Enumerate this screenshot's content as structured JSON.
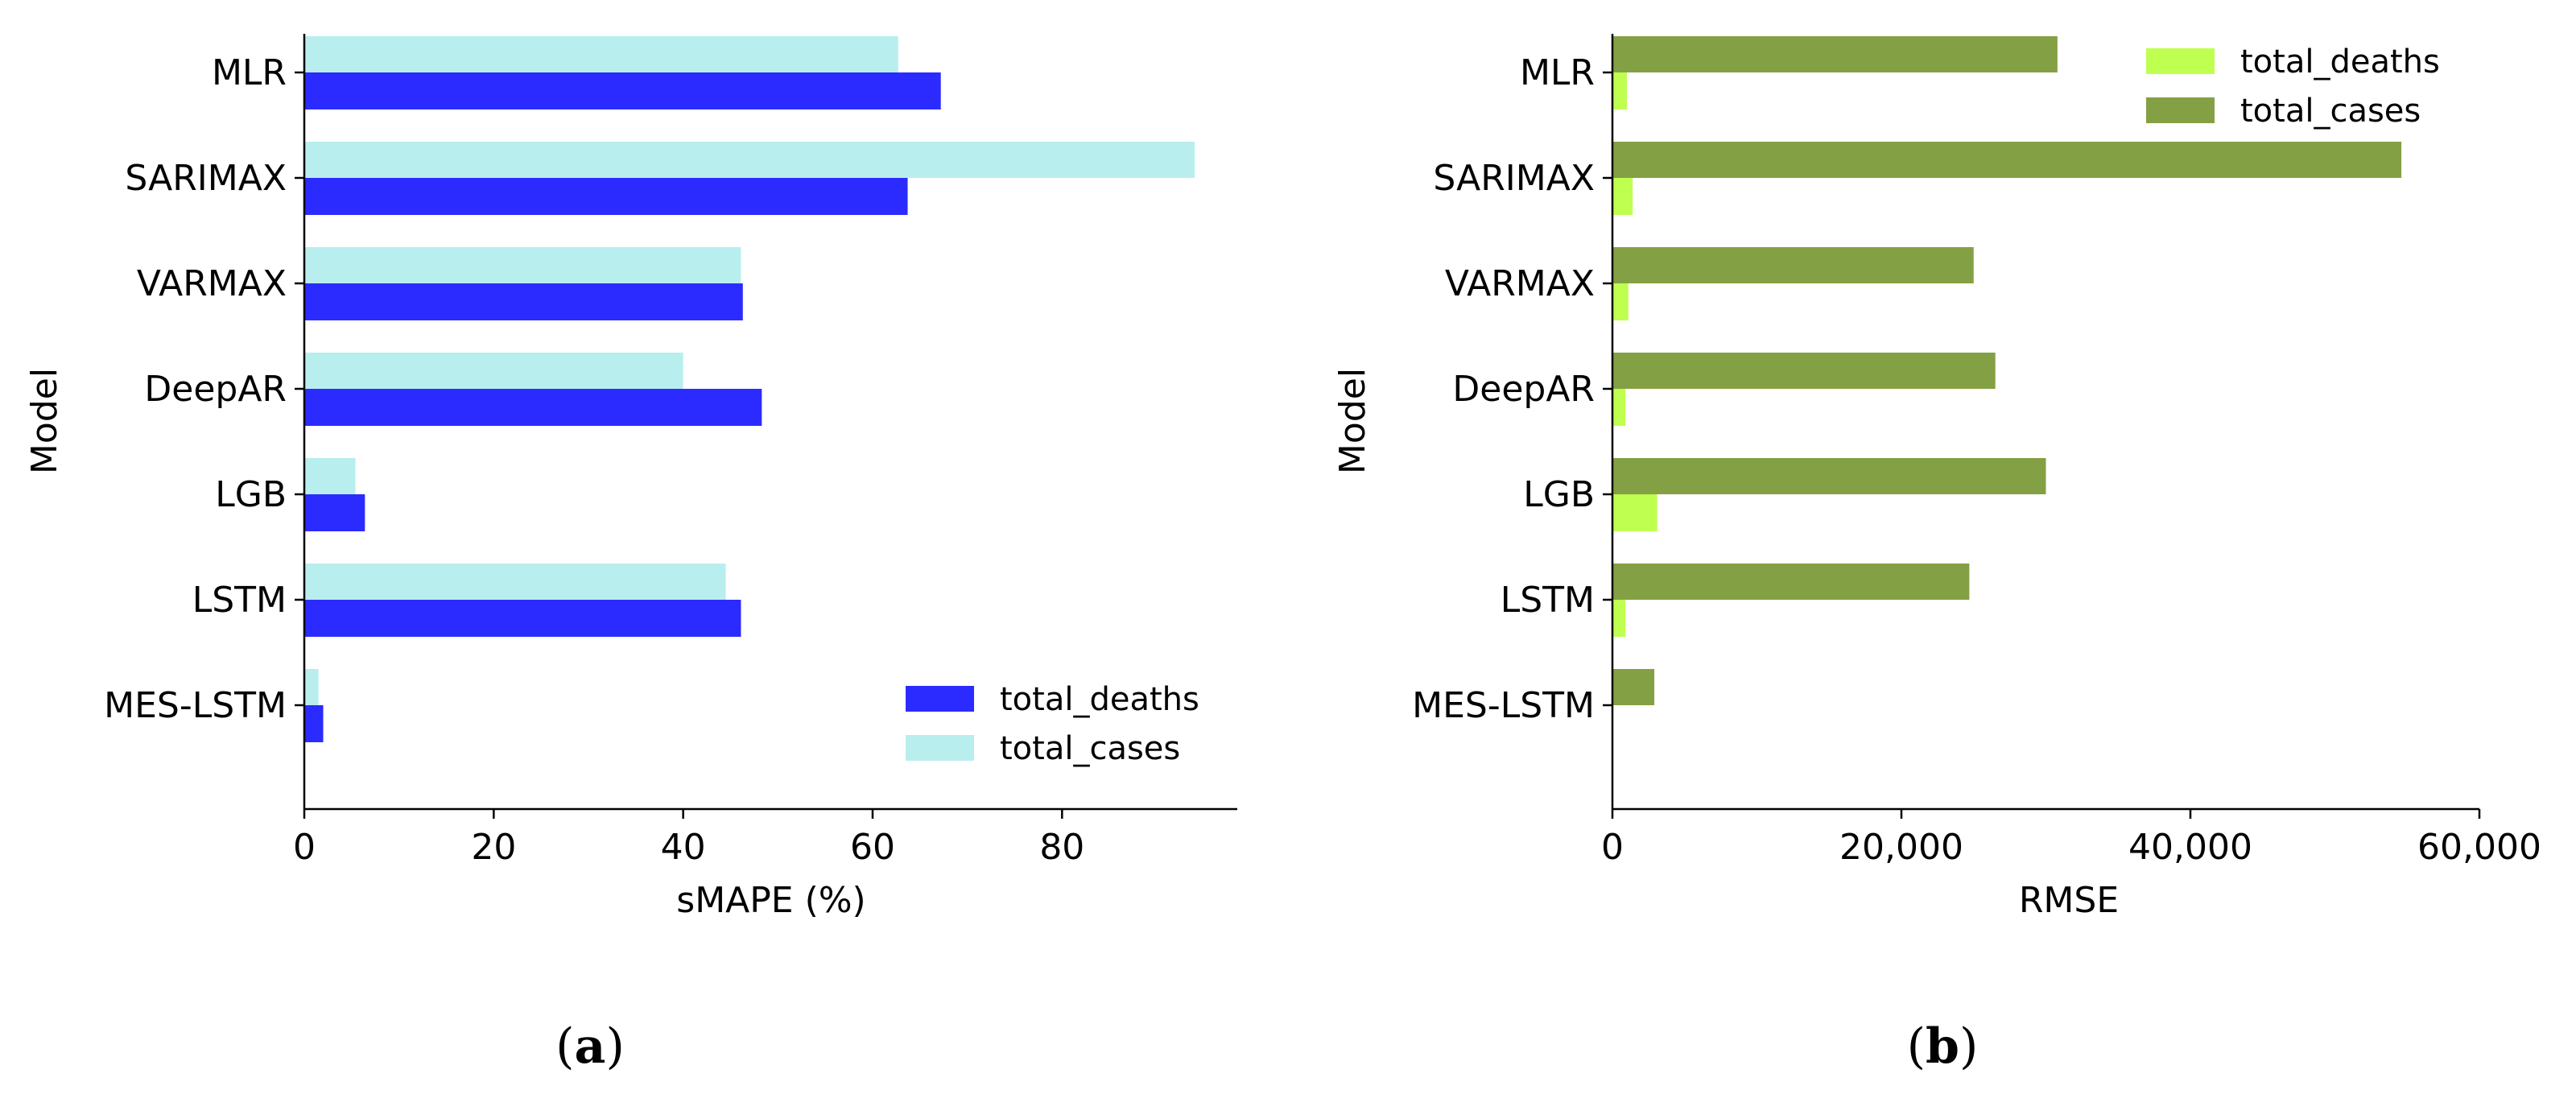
{
  "chart_data": [
    {
      "type": "bar",
      "orientation": "horizontal",
      "panel_label": "a",
      "title": "",
      "xlabel": "sMAPE (%)",
      "ylabel": "Model",
      "categories": [
        "MLR",
        "SARIMAX",
        "VARMAX",
        "DeepAR",
        "LGB",
        "LSTM",
        "MES-LSTM"
      ],
      "series": [
        {
          "name": "total_deaths",
          "color": "#2b2bff",
          "values": [
            67.2,
            63.7,
            46.3,
            48.3,
            6.4,
            46.1,
            2.0
          ]
        },
        {
          "name": "total_cases",
          "color": "#b9eeee",
          "values": [
            62.7,
            94.0,
            46.1,
            40.0,
            5.4,
            44.5,
            1.5
          ]
        }
      ],
      "xlim": [
        0,
        98.5
      ],
      "xticks": [
        0,
        20,
        40,
        60,
        80
      ],
      "xtick_labels": [
        "0",
        "20",
        "40",
        "60",
        "80"
      ],
      "legend": {
        "position": "bottom-right",
        "entries": [
          "total_deaths",
          "total_cases"
        ]
      },
      "grid": false
    },
    {
      "type": "bar",
      "orientation": "horizontal",
      "panel_label": "b",
      "title": "",
      "xlabel": "RMSE",
      "ylabel": "Model",
      "categories": [
        "MLR",
        "SARIMAX",
        "VARMAX",
        "DeepAR",
        "LGB",
        "LSTM",
        "MES-LSTM"
      ],
      "series": [
        {
          "name": "total_deaths",
          "color": "#bfff4f",
          "values": [
            1000,
            1400,
            1100,
            900,
            3100,
            900,
            0
          ]
        },
        {
          "name": "total_cases",
          "color": "#84a044",
          "values": [
            30800,
            54600,
            25000,
            26500,
            30000,
            24700,
            2900
          ]
        }
      ],
      "xlim": [
        0,
        60000
      ],
      "xticks": [
        0,
        20000,
        40000,
        60000
      ],
      "xtick_labels": [
        "0",
        "20,000",
        "40,000",
        "60,000"
      ],
      "legend": {
        "position": "top-right",
        "entries": [
          "total_deaths",
          "total_cases"
        ]
      },
      "grid": false
    }
  ],
  "captions": [
    {
      "open": "(",
      "letter": "a",
      "close": ")"
    },
    {
      "open": "(",
      "letter": "b",
      "close": ")"
    }
  ]
}
